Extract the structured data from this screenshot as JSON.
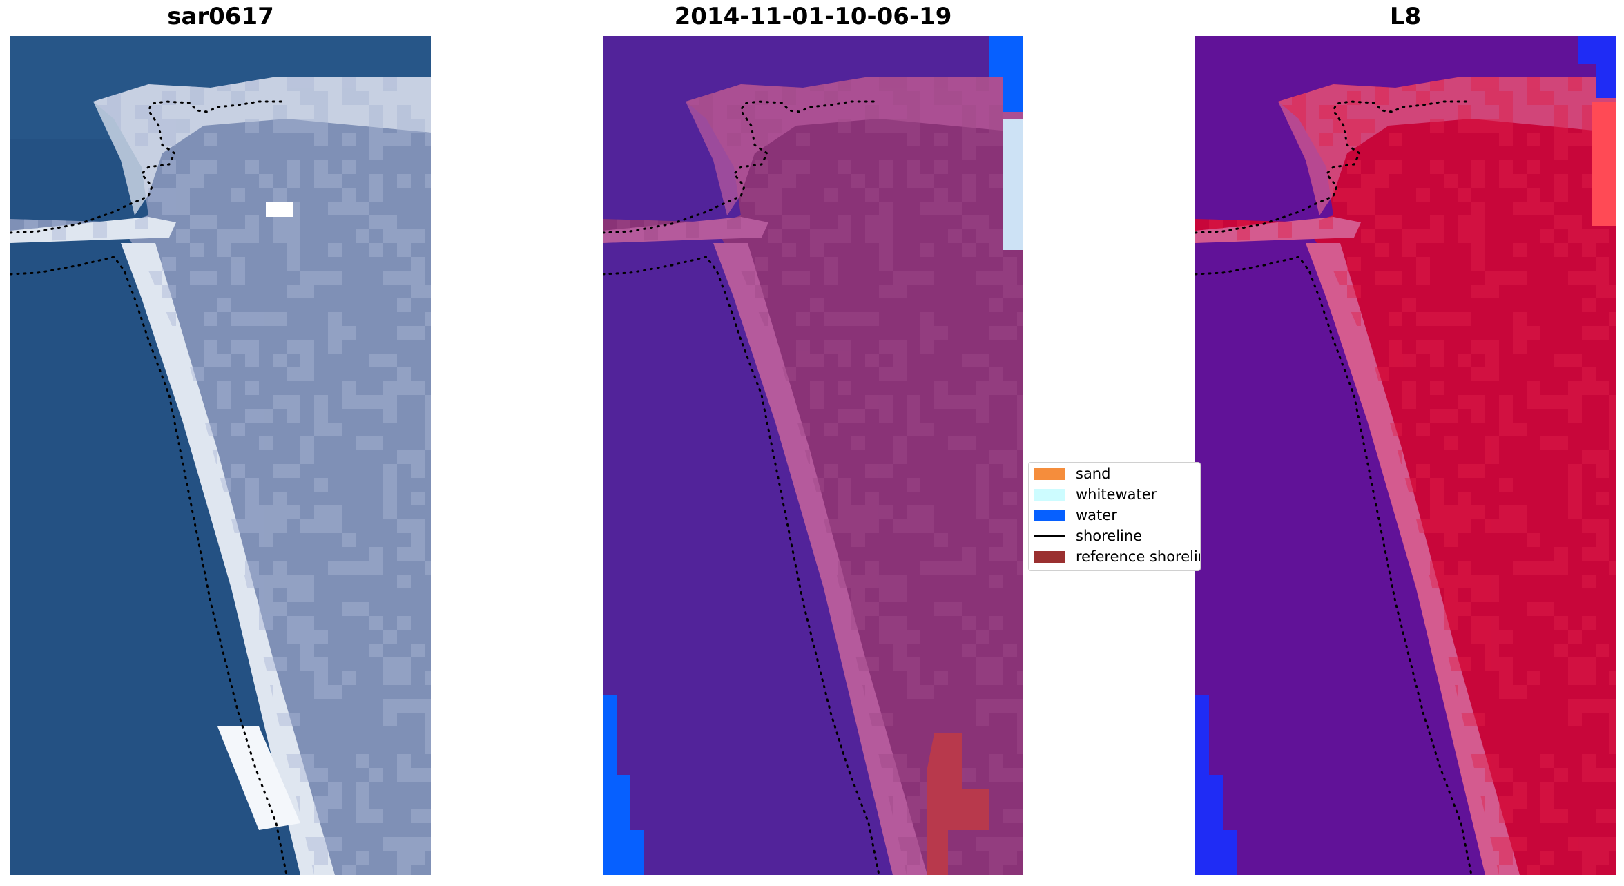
{
  "panels": [
    {
      "title": "sar0617",
      "name": "rgb-image-panel",
      "style": "rgb"
    },
    {
      "title": "2014-11-01-10-06-19",
      "name": "classified-image-panel",
      "style": "classified"
    },
    {
      "title": "L8",
      "name": "index-image-panel",
      "style": "index"
    }
  ],
  "legend": {
    "items": [
      {
        "label": "sand",
        "color": "#f58d3c",
        "kind": "patch"
      },
      {
        "label": "whitewater",
        "color": "#cdfcff",
        "kind": "patch"
      },
      {
        "label": "water",
        "color": "#0660ff",
        "kind": "patch"
      },
      {
        "label": "shoreline",
        "color": "#000000",
        "kind": "line"
      },
      {
        "label": "reference shoreline",
        "color": "#9a3030",
        "kind": "patch"
      }
    ]
  },
  "colors": {
    "sea_rgb": "#245183",
    "land_rgb": "#7f90b6",
    "beach_rgb": "#dfe6f0",
    "sea_classified": "#52239a",
    "land_classified": "#8a3377",
    "beach_classified": "#b55a9c",
    "water_class": "#0660ff",
    "refshore_class": "#b8394c",
    "sea_index": "#611298",
    "land_index": "#c8063a",
    "beach_index": "#d45b8f",
    "water_index": "#1f2cf5"
  }
}
